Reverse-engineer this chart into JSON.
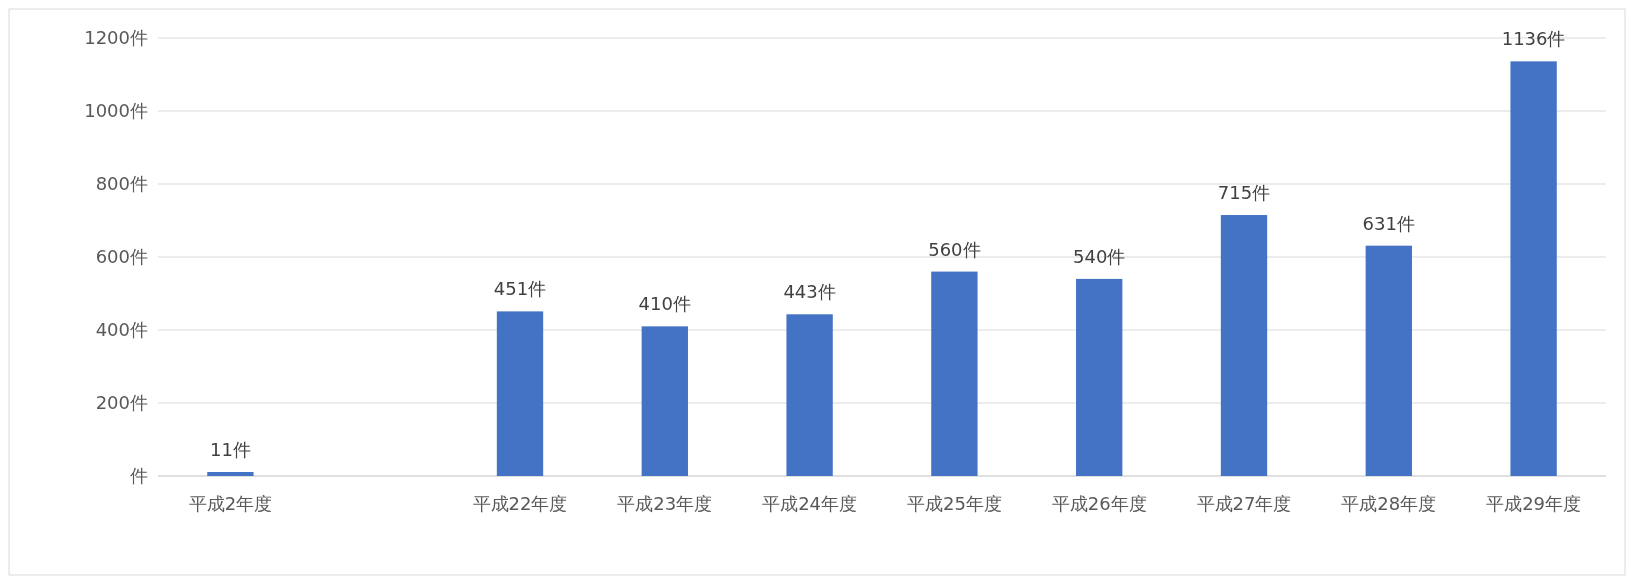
{
  "chart_data": {
    "type": "bar",
    "categories": [
      "平成2年度",
      null,
      "平成22年度",
      "平成23年度",
      "平成24年度",
      "平成25年度",
      "平成26年度",
      "平成27年度",
      "平成28年度",
      "平成29年度"
    ],
    "values": [
      11,
      null,
      451,
      410,
      443,
      560,
      540,
      715,
      631,
      1136
    ],
    "value_labels": [
      "11件",
      null,
      "451件",
      "410件",
      "443件",
      "560件",
      "540件",
      "715件",
      "631件",
      "1136件"
    ],
    "color": "#4472c4",
    "ylim": [
      0,
      1200
    ],
    "yticks": [
      {
        "value": 0,
        "label": "件"
      },
      {
        "value": 200,
        "label": "200件"
      },
      {
        "value": 400,
        "label": "400件"
      },
      {
        "value": 600,
        "label": "600件"
      },
      {
        "value": 800,
        "label": "800件"
      },
      {
        "value": 1000,
        "label": "1000件"
      },
      {
        "value": 1200,
        "label": "1200件"
      }
    ],
    "grid": "y"
  }
}
